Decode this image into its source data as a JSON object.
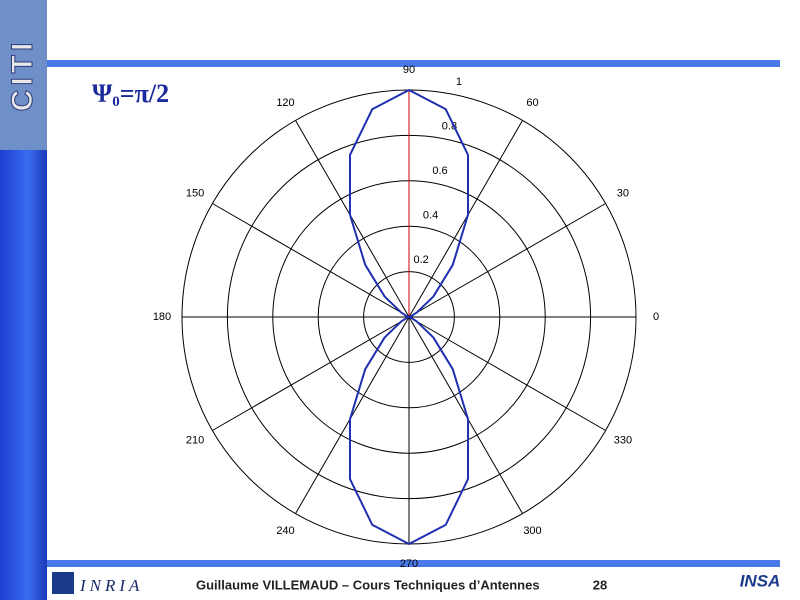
{
  "slide": {
    "title": {
      "symbol": "Ψ",
      "subscript": "0",
      "rest": "=π/2"
    },
    "logo_left": "CITI",
    "logo_bottom_left": "INRIA",
    "logo_bottom_right": "INSA",
    "footer": "Guillaume VILLEMAUD – Cours Techniques d’Antennes",
    "page_number": "28"
  },
  "chart_data": {
    "type": "polar",
    "theta": [
      0,
      10,
      20,
      30,
      40,
      50,
      60,
      70,
      80,
      90,
      100,
      110,
      120,
      130,
      140,
      150,
      160,
      170,
      180,
      190,
      200,
      210,
      220,
      230,
      240,
      250,
      260,
      270,
      280,
      290,
      300,
      310,
      320,
      330,
      340,
      350,
      360
    ],
    "series": [
      {
        "color": "#1f2fb0",
        "values": [
          0,
          0,
          0.01,
          0.04,
          0.14,
          0.3,
          0.52,
          0.76,
          0.93,
          1,
          0.93,
          0.76,
          0.52,
          0.3,
          0.14,
          0.04,
          0.01,
          0,
          0,
          0,
          0.01,
          0.04,
          0.14,
          0.3,
          0.52,
          0.76,
          0.93,
          1,
          0.93,
          0.76,
          0.52,
          0.3,
          0.14,
          0.04,
          0.01,
          0,
          0
        ]
      }
    ],
    "rlim": [
      0,
      1
    ],
    "rticks": [
      0.2,
      0.4,
      0.6,
      0.8,
      1
    ],
    "thetaticks": [
      0,
      30,
      60,
      90,
      120,
      150,
      180,
      210,
      240,
      270,
      300,
      330
    ],
    "highlight_angle": 90,
    "highlight_color": "#d00000",
    "grid": true
  }
}
